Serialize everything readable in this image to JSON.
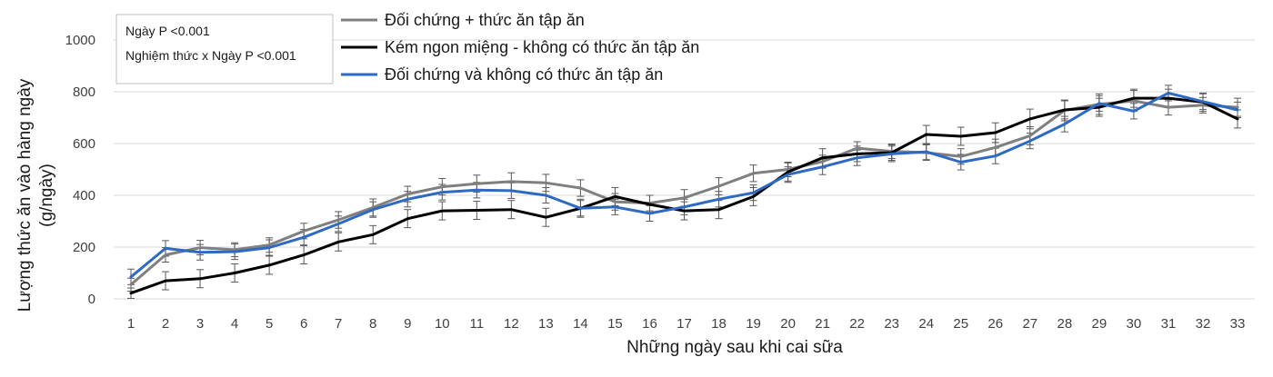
{
  "chart_data": {
    "type": "line",
    "xlabel": "Những ngày sau khi cai sữa",
    "ylabel_line1": "Lượng thức ăn vào hàng ngày",
    "ylabel_line2": "(g/ngày)",
    "ylim": [
      0,
      1000
    ],
    "yticks": [
      0,
      200,
      400,
      600,
      800,
      1000
    ],
    "grid": "horizontal",
    "legend_placement": "top-left",
    "x": [
      1,
      2,
      3,
      4,
      5,
      6,
      7,
      8,
      9,
      10,
      11,
      12,
      13,
      14,
      15,
      16,
      17,
      18,
      19,
      20,
      21,
      22,
      23,
      24,
      25,
      26,
      27,
      28,
      29,
      30,
      31,
      32,
      33
    ],
    "stats": [
      "Ngày P <0.001",
      "Nghiệm thức x Ngày P <0.001"
    ],
    "series": [
      {
        "name": "Đối chứng + thức ăn tập ăn",
        "color": "#7f7f7f",
        "values": [
          55,
          170,
          198,
          190,
          208,
          262,
          305,
          353,
          405,
          433,
          445,
          453,
          448,
          428,
          375,
          370,
          390,
          435,
          485,
          500,
          530,
          582,
          570,
          565,
          550,
          585,
          630,
          728,
          752,
          765,
          740,
          748,
          740
        ],
        "errors": [
          25,
          28,
          28,
          27,
          28,
          30,
          32,
          33,
          30,
          32,
          33,
          34,
          33,
          32,
          32,
          30,
          32,
          33,
          32,
          28,
          25,
          25,
          28,
          30,
          30,
          32,
          35,
          40,
          40,
          40,
          30,
          30,
          35
        ]
      },
      {
        "name": "Kém ngon miệng - không có thức ăn tập ăn",
        "color": "#000000",
        "values": [
          22,
          70,
          78,
          100,
          130,
          170,
          220,
          248,
          310,
          340,
          342,
          345,
          315,
          350,
          395,
          365,
          340,
          345,
          395,
          490,
          545,
          560,
          565,
          635,
          628,
          642,
          695,
          730,
          740,
          775,
          775,
          760,
          695
        ],
        "errors": [
          20,
          35,
          35,
          35,
          35,
          35,
          35,
          35,
          35,
          35,
          35,
          35,
          35,
          35,
          35,
          35,
          35,
          35,
          35,
          35,
          35,
          30,
          30,
          35,
          35,
          38,
          38,
          35,
          35,
          35,
          35,
          35,
          35
        ]
      },
      {
        "name": "Đối chứng và không có thức ăn tập ăn",
        "color": "#2e6ac4",
        "values": [
          85,
          195,
          180,
          182,
          198,
          238,
          290,
          345,
          385,
          412,
          420,
          418,
          400,
          350,
          355,
          330,
          355,
          385,
          410,
          480,
          510,
          545,
          560,
          568,
          528,
          552,
          610,
          675,
          755,
          725,
          795,
          762,
          730
        ],
        "errors": [
          30,
          30,
          30,
          30,
          30,
          30,
          30,
          30,
          30,
          30,
          30,
          30,
          30,
          30,
          30,
          30,
          30,
          30,
          30,
          30,
          30,
          30,
          30,
          30,
          30,
          30,
          30,
          30,
          30,
          30,
          30,
          30,
          30
        ]
      }
    ]
  }
}
